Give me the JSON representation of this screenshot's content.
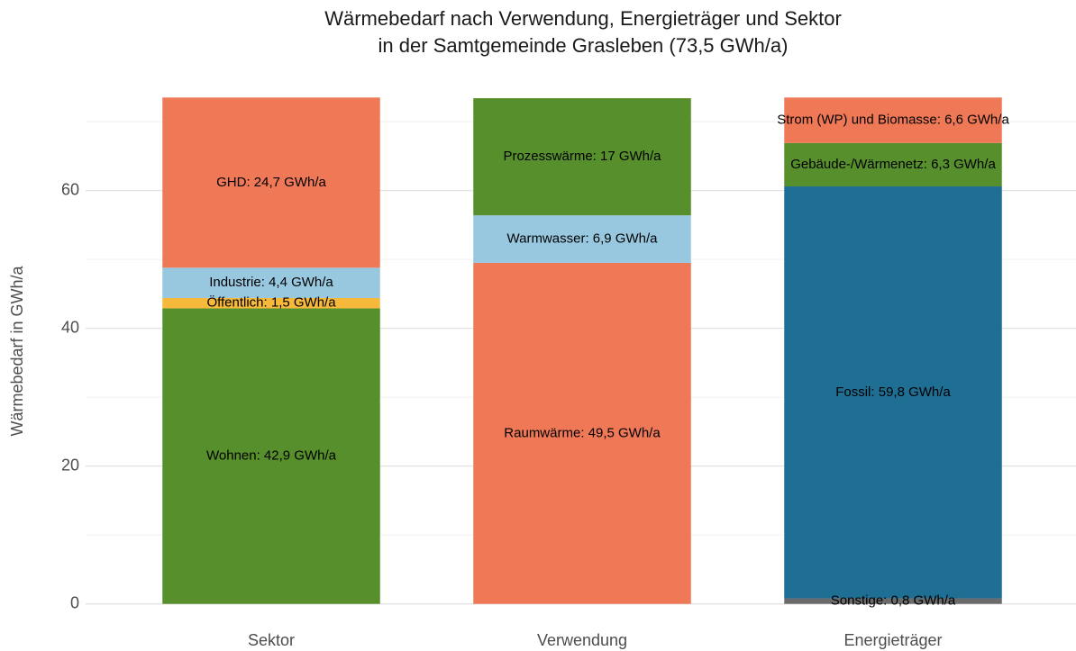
{
  "chart_data": {
    "type": "stacked_bar",
    "title": [
      "Wärmebedarf nach Verwendung, Energieträger und Sektor",
      "in der Samtgemeinde Grasleben (73,5 GWh/a)"
    ],
    "ylabel": "Wärmebedarf in GWh/a",
    "categories": [
      "Sektor",
      "Verwendung",
      "Energieträger"
    ],
    "stacks": [
      {
        "segments": [
          {
            "name": "Wohnen",
            "value": 42.9,
            "label": "Wohnen: 42,9 GWh/a",
            "color": "#568f2c"
          },
          {
            "name": "Öffentlich",
            "value": 1.5,
            "label": "Öffentlich: 1,5 GWh/a",
            "color": "#f6b93b"
          },
          {
            "name": "Industrie",
            "value": 4.4,
            "label": "Industrie: 4,4 GWh/a",
            "color": "#97c8e0"
          },
          {
            "name": "GHD",
            "value": 24.7,
            "label": "GHD: 24,7 GWh/a",
            "color": "#ef7857"
          }
        ]
      },
      {
        "segments": [
          {
            "name": "Raumwärme",
            "value": 49.5,
            "label": "Raumwärme: 49,5 GWh/a",
            "color": "#ef7857"
          },
          {
            "name": "Warmwasser",
            "value": 6.9,
            "label": "Warmwasser: 6,9 GWh/a",
            "color": "#97c8e0"
          },
          {
            "name": "Prozesswärme",
            "value": 17,
            "label": "Prozesswärme: 17 GWh/a",
            "color": "#568f2c"
          }
        ]
      },
      {
        "segments": [
          {
            "name": "Sonstige",
            "value": 0.8,
            "label": "Sonstige: 0,8 GWh/a",
            "color": "#6b6b6b"
          },
          {
            "name": "Fossil",
            "value": 59.8,
            "label": "Fossil: 59,8 GWh/a",
            "color": "#1f6e94"
          },
          {
            "name": "Gebäude-/Wärmenetz",
            "value": 6.3,
            "label": "Gebäude-/Wärmenetz: 6,3 GWh/a",
            "color": "#568f2c"
          },
          {
            "name": "Strom (WP) und Biomasse",
            "value": 6.6,
            "label": "Strom (WP) und Biomasse: 6,6 GWh/a",
            "color": "#ef7857"
          }
        ]
      }
    ],
    "ylim": [
      -3.7,
      77.2
    ],
    "yticks": [
      0,
      20,
      40,
      60
    ],
    "minor_yticks": [
      10,
      30,
      50,
      70
    ],
    "grid": true
  }
}
